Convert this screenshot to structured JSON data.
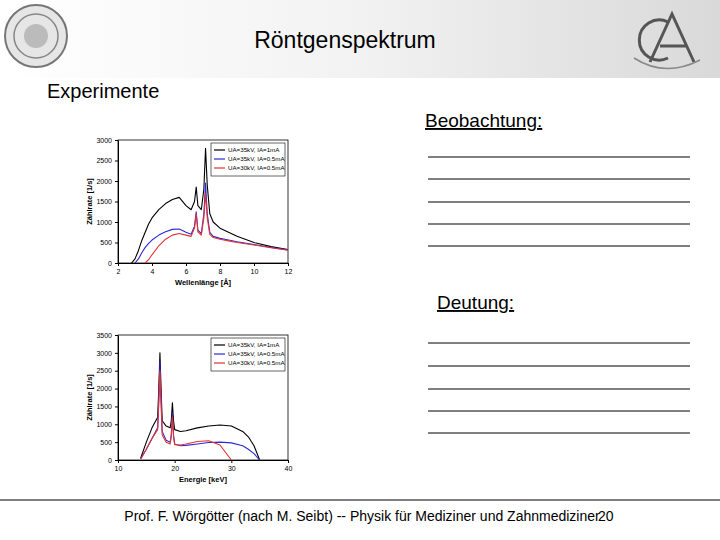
{
  "title": "Röntgenspektrum",
  "section": "Experimente",
  "observation": "Beobachtung:",
  "interpretation": "Deutung:",
  "footer": "Prof. F. Wörgötter (nach M. Seibt) -- Physik für Mediziner und Zahnmediziner",
  "page": 20,
  "chart_data": [
    {
      "type": "line",
      "x_label": "Wellenlänge [Å]",
      "y_label": "Zählrate [1/s]",
      "x": [
        2.8,
        3.0,
        3.2,
        3.4,
        3.6,
        3.8,
        4.0,
        4.4,
        4.8,
        5.2,
        5.6,
        6.0,
        6.3,
        6.5,
        6.6,
        6.7,
        6.9,
        7.05,
        7.15,
        7.25,
        7.4,
        7.6,
        8.0,
        8.5,
        9,
        10,
        11,
        12
      ],
      "series": [
        {
          "name": "UA=35kV, IA=1mA",
          "color": "#000000",
          "values": [
            0,
            100,
            300,
            550,
            750,
            950,
            1100,
            1300,
            1450,
            1550,
            1600,
            1400,
            1300,
            1500,
            1850,
            1400,
            1300,
            1800,
            2800,
            1900,
            1200,
            1000,
            850,
            750,
            650,
            500,
            400,
            330
          ]
        },
        {
          "name": "UA=35kV, IA=0.5mA",
          "color": "#2b2bd6",
          "values": [
            null,
            0,
            100,
            250,
            380,
            480,
            560,
            680,
            760,
            820,
            830,
            750,
            700,
            900,
            1250,
            800,
            720,
            1200,
            1950,
            1200,
            750,
            650,
            600,
            560,
            520,
            450,
            380,
            320
          ]
        },
        {
          "name": "UA=30kV, IA=0.5mA",
          "color": "#e8302f",
          "values": [
            null,
            null,
            null,
            null,
            0,
            80,
            200,
            420,
            580,
            680,
            720,
            680,
            650,
            850,
            1200,
            760,
            680,
            1100,
            1700,
            1100,
            700,
            620,
            580,
            540,
            500,
            440,
            370,
            310
          ]
        }
      ],
      "xlim": [
        2,
        12
      ],
      "xticks": [
        2,
        4,
        6,
        8,
        10,
        12
      ],
      "ylim": [
        0,
        3000
      ],
      "yticks": [
        0,
        500,
        1000,
        1500,
        2000,
        2500,
        3000
      ],
      "grid": false,
      "legend": "upper right"
    },
    {
      "type": "line",
      "x_label": "Energie [keV]",
      "y_label": "Zählrate [1/s]",
      "x": [
        14,
        15,
        16,
        17,
        17.2,
        17.4,
        17.6,
        17.8,
        18.5,
        19.2,
        19.4,
        19.6,
        19.8,
        20,
        21,
        22,
        24,
        26,
        28,
        30,
        32,
        33,
        34,
        35
      ],
      "series": [
        {
          "name": "UA=35kV, IA=1mA",
          "color": "#000000",
          "values": [
            50,
            500,
            900,
            1200,
            2000,
            3000,
            2000,
            1100,
            950,
            900,
            1100,
            1600,
            1100,
            850,
            800,
            820,
            900,
            950,
            980,
            950,
            800,
            650,
            400,
            0
          ]
        },
        {
          "name": "UA=35kV, IA=0.5mA",
          "color": "#2b2bd6",
          "values": [
            30,
            300,
            600,
            900,
            1700,
            2750,
            1700,
            800,
            550,
            500,
            700,
            1300,
            700,
            450,
            400,
            410,
            450,
            490,
            500,
            480,
            400,
            300,
            180,
            0
          ]
        },
        {
          "name": "UA=30kV, IA=0.5mA",
          "color": "#e8302f",
          "values": [
            30,
            300,
            600,
            850,
            1600,
            2500,
            1600,
            700,
            500,
            450,
            650,
            1200,
            650,
            430,
            420,
            450,
            520,
            540,
            420,
            0,
            null,
            null,
            null,
            null
          ]
        }
      ],
      "xlim": [
        10,
        40
      ],
      "xticks": [
        10,
        20,
        30,
        40
      ],
      "ylim": [
        0,
        3500
      ],
      "yticks": [
        0,
        500,
        1000,
        1500,
        2000,
        2500,
        3000,
        3500
      ],
      "grid": false,
      "legend": "upper right"
    }
  ]
}
